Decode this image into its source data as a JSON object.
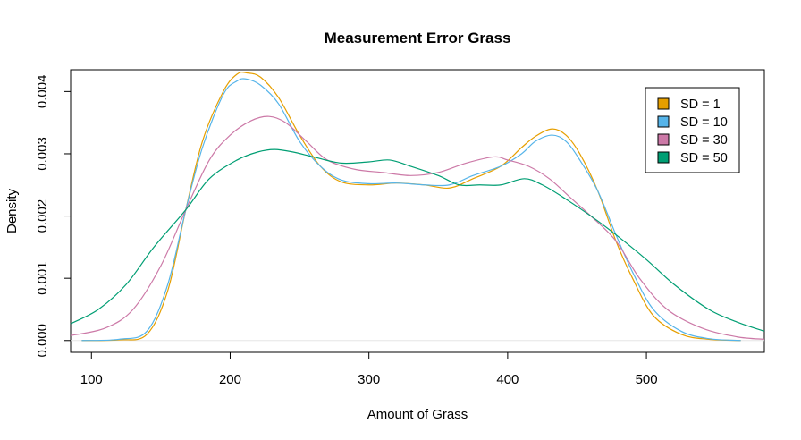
{
  "chart_data": {
    "type": "line",
    "title": "Measurement Error Grass",
    "xlabel": "Amount of Grass",
    "ylabel": "Density",
    "xlim": [
      85,
      585
    ],
    "ylim": [
      -0.00019,
      0.00435
    ],
    "xticks": [
      100,
      200,
      300,
      400,
      500
    ],
    "xtick_labels": [
      "100",
      "200",
      "300",
      "400",
      "500"
    ],
    "yticks": [
      0,
      0.001,
      0.002,
      0.003,
      0.004
    ],
    "ytick_labels": [
      "0.000",
      "0.001",
      "0.002",
      "0.003",
      "0.004"
    ],
    "grid": false,
    "legend_position": "top-right",
    "series": [
      {
        "name": "SD = 1",
        "color": "#E69F00",
        "x": [
          93,
          120,
          140,
          155,
          168,
          180,
          195,
          205,
          212,
          222,
          235,
          250,
          265,
          280,
          300,
          320,
          340,
          358,
          375,
          395,
          410,
          420,
          432,
          442,
          452,
          465,
          478,
          490,
          505,
          525,
          545,
          568
        ],
        "y": [
          0,
          1e-05,
          0.0001,
          0.0008,
          0.0021,
          0.0032,
          0.004,
          0.00428,
          0.0043,
          0.00423,
          0.0039,
          0.0033,
          0.0028,
          0.00255,
          0.0025,
          0.00253,
          0.0025,
          0.00245,
          0.0026,
          0.0028,
          0.0031,
          0.00328,
          0.0034,
          0.0033,
          0.003,
          0.0024,
          0.0016,
          0.001,
          0.0004,
          0.0001,
          2e-05,
          0
        ]
      },
      {
        "name": "SD = 10",
        "color": "#56B4E9",
        "x": [
          93,
          120,
          140,
          155,
          168,
          180,
          195,
          205,
          212,
          222,
          235,
          250,
          265,
          280,
          300,
          320,
          340,
          358,
          375,
          395,
          410,
          420,
          432,
          442,
          452,
          465,
          478,
          490,
          505,
          525,
          545,
          568
        ],
        "y": [
          0,
          2e-05,
          0.00015,
          0.0009,
          0.0021,
          0.0031,
          0.00395,
          0.00417,
          0.0042,
          0.0041,
          0.0038,
          0.0032,
          0.0028,
          0.00258,
          0.00252,
          0.00253,
          0.0025,
          0.0025,
          0.00265,
          0.0028,
          0.003,
          0.0032,
          0.0033,
          0.0032,
          0.0029,
          0.0024,
          0.0017,
          0.0011,
          0.0005,
          0.00015,
          3e-05,
          0
        ]
      },
      {
        "name": "SD = 30",
        "color": "#CC79A7",
        "x": [
          85,
          110,
          130,
          150,
          168,
          185,
          200,
          215,
          228,
          240,
          255,
          270,
          290,
          310,
          330,
          350,
          370,
          390,
          400,
          415,
          430,
          445,
          460,
          478,
          495,
          515,
          540,
          565,
          585
        ],
        "y": [
          8e-05,
          0.0002,
          0.0005,
          0.0012,
          0.0021,
          0.0029,
          0.0033,
          0.00353,
          0.0036,
          0.0035,
          0.0032,
          0.0029,
          0.00275,
          0.0027,
          0.00265,
          0.0027,
          0.00285,
          0.00295,
          0.0029,
          0.0028,
          0.0026,
          0.0023,
          0.002,
          0.0016,
          0.001,
          0.0005,
          0.0002,
          6e-05,
          2e-05
        ]
      },
      {
        "name": "SD = 50",
        "color": "#009E73",
        "x": [
          85,
          105,
          125,
          145,
          168,
          185,
          205,
          220,
          232,
          245,
          260,
          280,
          300,
          315,
          330,
          350,
          365,
          380,
          395,
          412,
          425,
          440,
          460,
          478,
          500,
          520,
          545,
          565,
          585
        ],
        "y": [
          0.00027,
          0.0005,
          0.0009,
          0.0015,
          0.0021,
          0.0026,
          0.0029,
          0.00303,
          0.00307,
          0.00303,
          0.00295,
          0.00285,
          0.00287,
          0.0029,
          0.0028,
          0.00265,
          0.0025,
          0.0025,
          0.0025,
          0.0026,
          0.0025,
          0.0023,
          0.002,
          0.0017,
          0.0013,
          0.0009,
          0.0005,
          0.0003,
          0.00015
        ]
      }
    ]
  }
}
